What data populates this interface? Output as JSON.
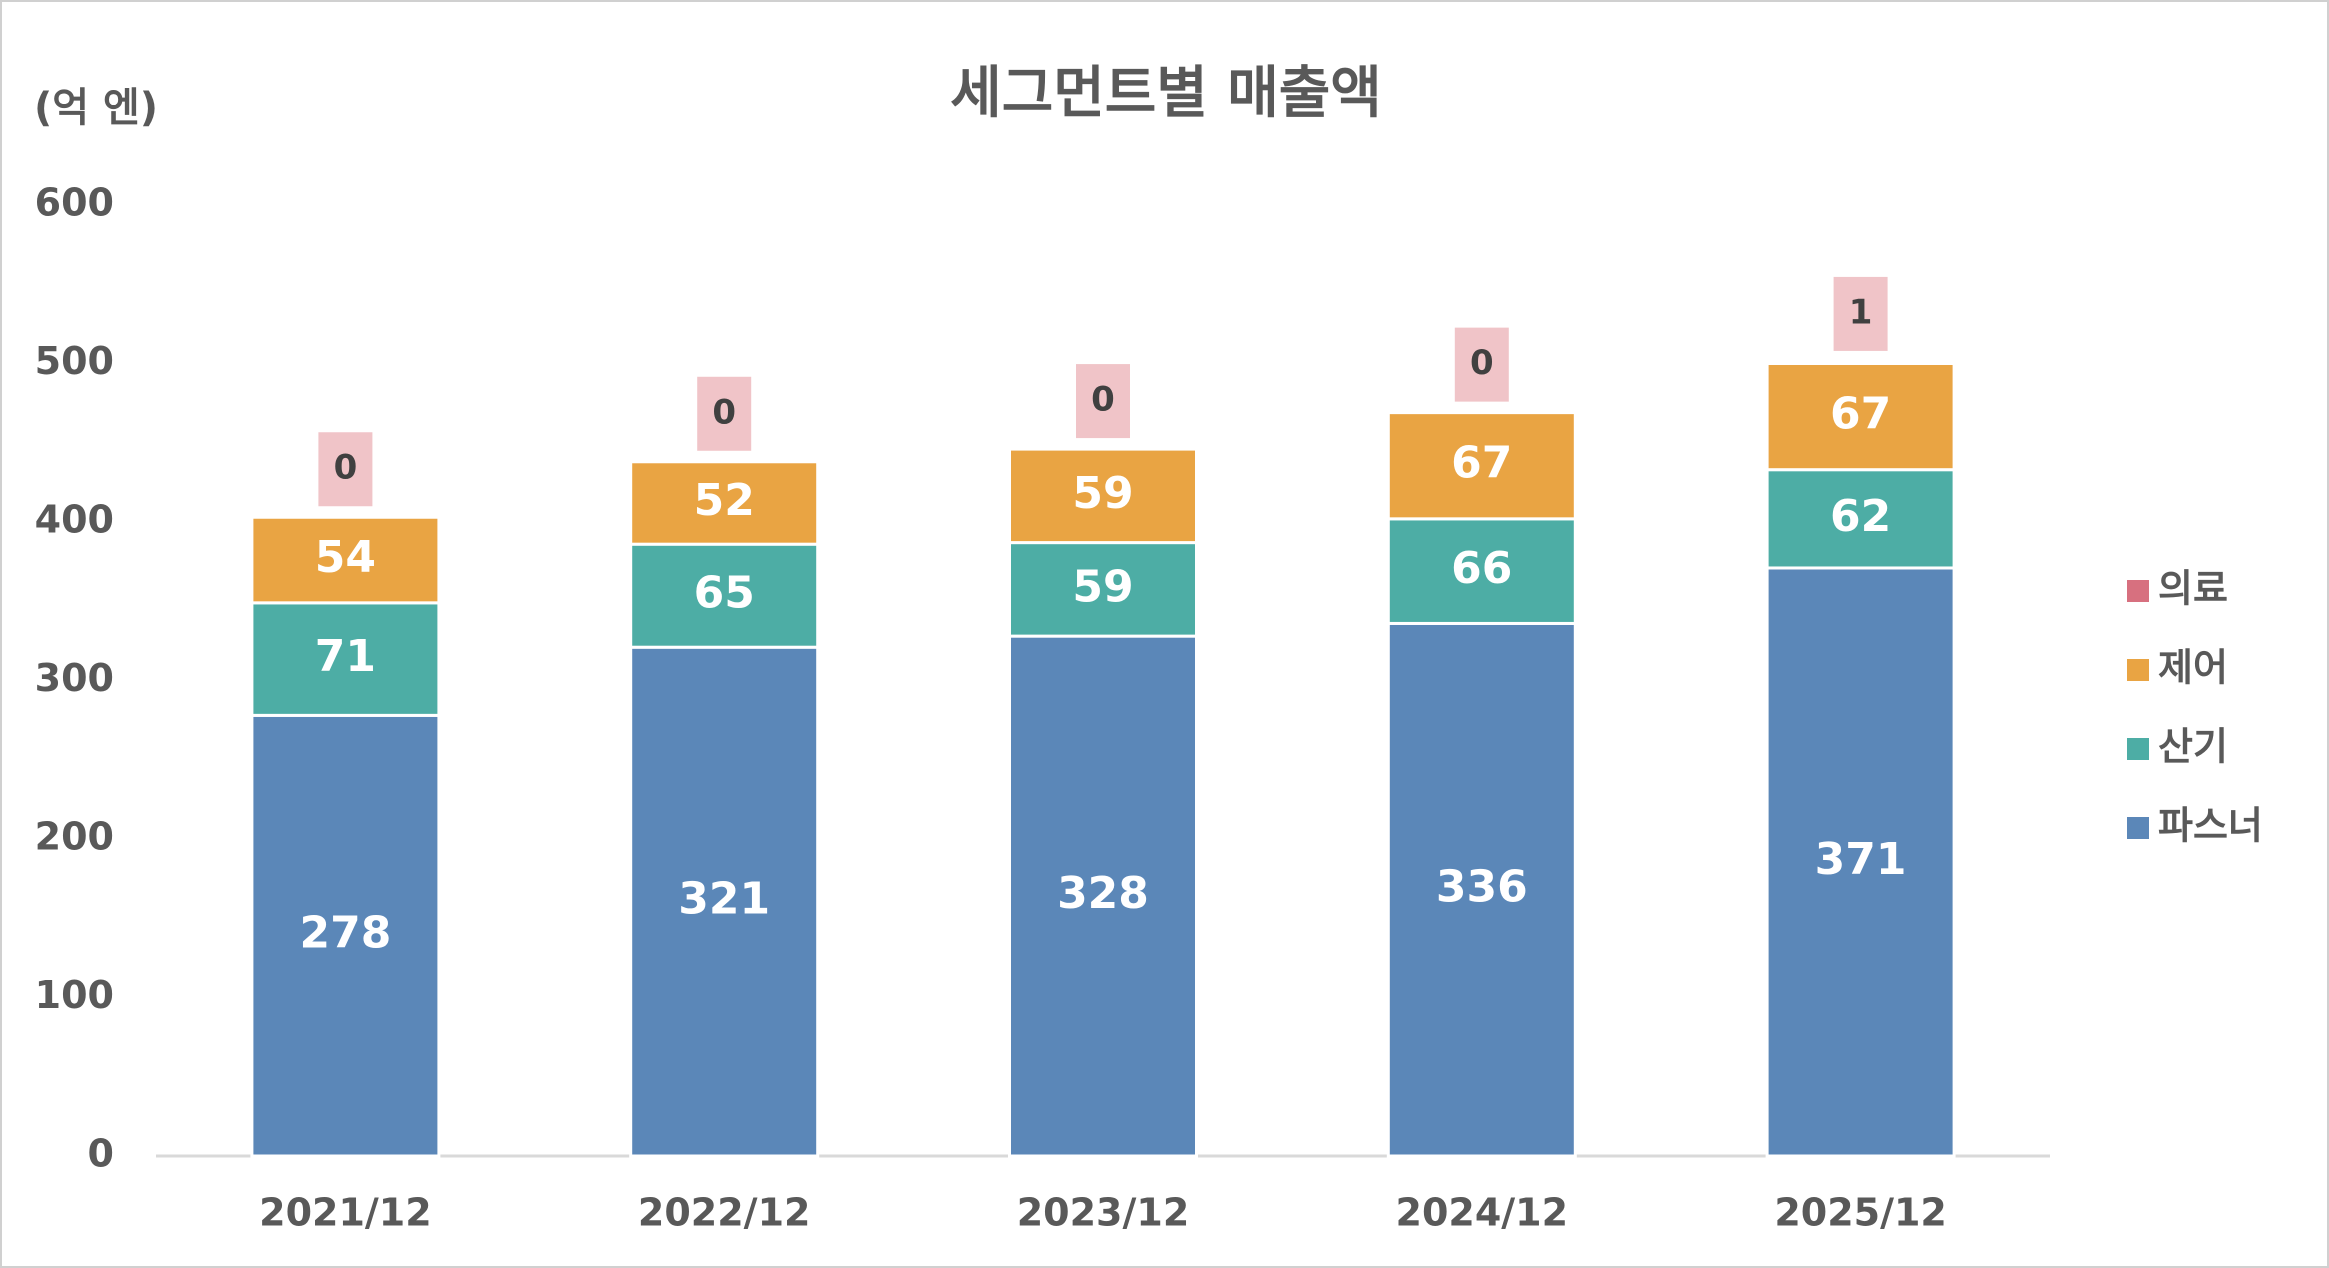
{
  "chart_data": {
    "type": "stacked_bar",
    "title": "세그먼트별 매출액",
    "y_axis_label": "(억 엔)",
    "categories": [
      "2021/12",
      "2022/12",
      "2023/12",
      "2024/12",
      "2025/12"
    ],
    "series": [
      {
        "name": "파스너",
        "color": "#5b87b8",
        "values": [
          278,
          321,
          328,
          336,
          371
        ]
      },
      {
        "name": "산기",
        "color": "#4dada5",
        "values": [
          71,
          65,
          59,
          66,
          62
        ]
      },
      {
        "name": "제어",
        "color": "#e9a443",
        "values": [
          54,
          52,
          59,
          67,
          67
        ]
      },
      {
        "name": "의료",
        "color": "#d7707f",
        "values": [
          0,
          0,
          0,
          0,
          1
        ]
      }
    ],
    "ylim": [
      0,
      600
    ],
    "yticks": [
      0,
      100,
      200,
      300,
      400,
      500,
      600
    ],
    "grid": false,
    "legend_position": "right"
  }
}
